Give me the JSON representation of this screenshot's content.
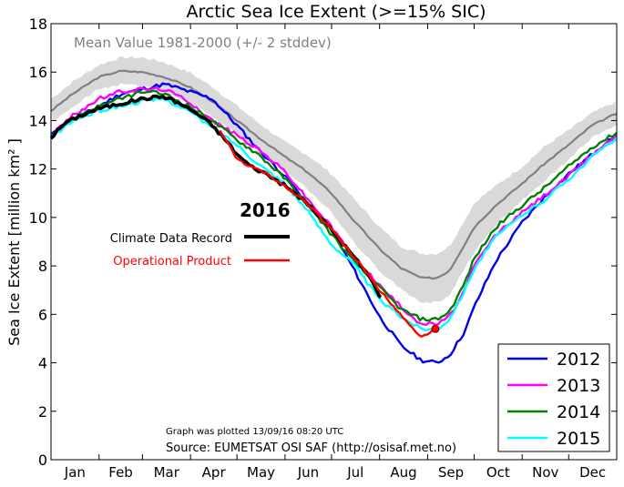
{
  "chart_data": {
    "type": "line",
    "title": "Arctic Sea Ice Extent (>=15% SIC)",
    "ylabel": "Sea Ice Extent [million km² ]",
    "xlabel": "",
    "ylim": [
      0,
      18
    ],
    "yticks": [
      0,
      2,
      4,
      6,
      8,
      10,
      12,
      14,
      16,
      18
    ],
    "xlim": [
      1,
      366
    ],
    "months": [
      "Jan",
      "Feb",
      "Mar",
      "Apr",
      "May",
      "Jun",
      "Jul",
      "Aug",
      "Sep",
      "Oct",
      "Nov",
      "Dec"
    ],
    "mean": {
      "label": "Mean Value 1981-2000 (+/- 2 stddev)",
      "color": "#808080",
      "band_color": "#d9d9d9",
      "x": [
        1,
        15,
        32,
        46,
        60,
        74,
        90,
        105,
        121,
        135,
        152,
        166,
        182,
        196,
        213,
        227,
        240,
        250,
        258,
        268,
        274,
        288,
        305,
        319,
        335,
        350,
        366
      ],
      "values": [
        14.4,
        15.1,
        15.8,
        16.05,
        16.0,
        15.8,
        15.4,
        14.8,
        14.0,
        13.3,
        12.5,
        11.9,
        11.0,
        9.9,
        8.7,
        7.9,
        7.5,
        7.5,
        7.8,
        8.9,
        9.6,
        10.5,
        11.4,
        12.2,
        13.0,
        13.8,
        14.3
      ],
      "upper": [
        14.9,
        15.6,
        16.3,
        16.6,
        16.6,
        16.4,
        16.0,
        15.4,
        14.6,
        13.9,
        13.1,
        12.6,
        11.8,
        10.8,
        9.6,
        8.8,
        8.5,
        8.5,
        8.8,
        9.9,
        10.6,
        11.3,
        12.1,
        12.9,
        13.6,
        14.3,
        14.8
      ],
      "lower": [
        13.9,
        14.6,
        15.3,
        15.5,
        15.4,
        15.2,
        14.8,
        14.2,
        13.4,
        12.7,
        11.9,
        11.2,
        10.2,
        9.0,
        7.8,
        7.0,
        6.5,
        6.5,
        6.8,
        7.9,
        8.6,
        9.7,
        10.7,
        11.5,
        12.4,
        13.3,
        13.8
      ]
    },
    "series": [
      {
        "name": "2012",
        "color": "#0000ee",
        "x": [
          1,
          15,
          32,
          46,
          60,
          67,
          74,
          80,
          90,
          105,
          121,
          135,
          152,
          166,
          182,
          196,
          213,
          227,
          240,
          250,
          258,
          268,
          274,
          288,
          305,
          319,
          335,
          350,
          366
        ],
        "values": [
          13.4,
          14.0,
          14.6,
          15.1,
          15.3,
          15.4,
          15.5,
          15.4,
          15.2,
          14.9,
          13.8,
          12.8,
          11.7,
          10.6,
          9.5,
          7.9,
          5.9,
          4.7,
          4.1,
          4.0,
          4.3,
          5.3,
          6.3,
          8.2,
          9.8,
          10.8,
          11.8,
          12.6,
          13.4
        ]
      },
      {
        "name": "2013",
        "color": "#ff00ff",
        "x": [
          1,
          15,
          32,
          46,
          60,
          74,
          90,
          105,
          121,
          135,
          152,
          166,
          182,
          196,
          213,
          227,
          240,
          250,
          258,
          268,
          274,
          288,
          305,
          319,
          335,
          350,
          366
        ],
        "values": [
          13.4,
          14.2,
          14.9,
          15.2,
          15.3,
          15.3,
          14.8,
          14.0,
          13.4,
          12.8,
          11.9,
          10.8,
          9.6,
          8.4,
          7.2,
          6.3,
          5.6,
          5.6,
          5.9,
          7.0,
          8.0,
          9.3,
          10.2,
          10.9,
          11.7,
          12.6,
          13.4
        ]
      },
      {
        "name": "2014",
        "color": "#008000",
        "x": [
          1,
          15,
          32,
          46,
          60,
          74,
          90,
          105,
          121,
          135,
          152,
          166,
          182,
          196,
          213,
          227,
          240,
          250,
          258,
          268,
          274,
          288,
          305,
          319,
          335,
          350,
          366
        ],
        "values": [
          13.4,
          14.1,
          14.6,
          14.9,
          15.2,
          15.1,
          14.6,
          14.0,
          13.2,
          12.6,
          11.6,
          10.6,
          9.3,
          8.2,
          7.1,
          6.2,
          5.8,
          5.8,
          6.1,
          7.3,
          8.3,
          9.6,
          10.5,
          11.2,
          12.1,
          12.9,
          13.5
        ]
      },
      {
        "name": "2015",
        "color": "#00ffff",
        "x": [
          1,
          15,
          32,
          46,
          60,
          74,
          90,
          105,
          121,
          135,
          152,
          166,
          182,
          196,
          213,
          227,
          240,
          250,
          258,
          268,
          274,
          288,
          305,
          319,
          335,
          350,
          366
        ],
        "values": [
          13.3,
          14.0,
          14.4,
          14.6,
          14.8,
          14.9,
          14.4,
          13.7,
          13.0,
          12.2,
          11.4,
          10.3,
          8.9,
          8.1,
          6.6,
          5.9,
          5.4,
          5.4,
          5.8,
          7.0,
          7.9,
          9.2,
          10.1,
          10.7,
          11.6,
          12.5,
          13.3
        ]
      }
    ],
    "series_2016": [
      {
        "name": "Climate Data Record",
        "color": "#000000",
        "x": [
          1,
          10,
          20,
          32,
          46,
          60,
          74,
          84,
          95,
          105,
          115,
          121,
          130,
          140,
          152,
          166,
          182,
          196,
          205,
          213
        ],
        "values": [
          13.3,
          13.9,
          14.2,
          14.5,
          14.7,
          14.9,
          15.0,
          14.7,
          14.3,
          13.8,
          13.1,
          12.6,
          12.1,
          11.8,
          11.3,
          10.6,
          9.5,
          8.4,
          7.7,
          6.8
        ]
      },
      {
        "name": "Operational Product",
        "color": "#ff0000",
        "x": [
          110,
          121,
          130,
          140,
          152,
          166,
          182,
          196,
          205,
          213,
          220,
          227,
          233,
          240,
          245,
          249
        ],
        "values": [
          13.6,
          12.4,
          12.1,
          11.8,
          11.3,
          10.6,
          9.5,
          8.4,
          7.7,
          7.0,
          6.5,
          6.0,
          5.5,
          5.1,
          5.2,
          5.4
        ],
        "marker_x": 249,
        "marker_value": 5.4
      }
    ],
    "legend_2016_title": "2016",
    "legend_position": "lower-right",
    "annotations": {
      "plotted": "Graph was plotted 13/09/16 08:20 UTC",
      "source": "Source: EUMETSAT OSI SAF (http://osisaf.met.no)"
    }
  }
}
